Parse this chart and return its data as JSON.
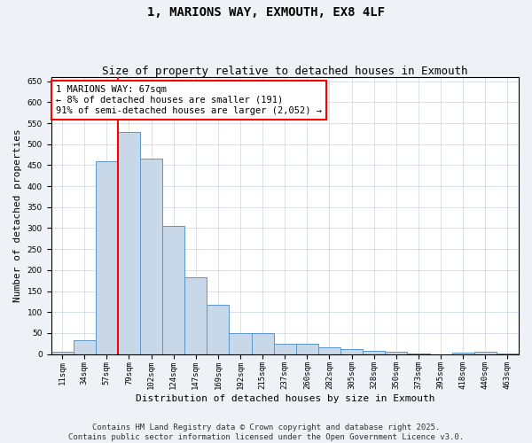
{
  "title": "1, MARIONS WAY, EXMOUTH, EX8 4LF",
  "subtitle": "Size of property relative to detached houses in Exmouth",
  "xlabel": "Distribution of detached houses by size in Exmouth",
  "ylabel": "Number of detached properties",
  "categories": [
    "11sqm",
    "34sqm",
    "57sqm",
    "79sqm",
    "102sqm",
    "124sqm",
    "147sqm",
    "169sqm",
    "192sqm",
    "215sqm",
    "237sqm",
    "260sqm",
    "282sqm",
    "305sqm",
    "328sqm",
    "350sqm",
    "373sqm",
    "395sqm",
    "418sqm",
    "440sqm",
    "463sqm"
  ],
  "values": [
    5,
    33,
    460,
    530,
    465,
    305,
    182,
    118,
    50,
    50,
    25,
    25,
    15,
    12,
    8,
    5,
    2,
    0,
    3,
    5,
    2
  ],
  "bar_color": "#c8d8e8",
  "bar_edge_color": "#5a96c8",
  "red_line_bin_index": 2,
  "annotation_text": "1 MARIONS WAY: 67sqm\n← 8% of detached houses are smaller (191)\n91% of semi-detached houses are larger (2,052) →",
  "annotation_box_color": "white",
  "annotation_box_edge_color": "red",
  "red_line_color": "red",
  "ylim": [
    0,
    660
  ],
  "yticks": [
    0,
    50,
    100,
    150,
    200,
    250,
    300,
    350,
    400,
    450,
    500,
    550,
    600,
    650
  ],
  "footer_line1": "Contains HM Land Registry data © Crown copyright and database right 2025.",
  "footer_line2": "Contains public sector information licensed under the Open Government Licence v3.0.",
  "bg_color": "#eef2f7",
  "plot_bg_color": "white",
  "title_fontsize": 10,
  "subtitle_fontsize": 9,
  "axis_label_fontsize": 8,
  "tick_fontsize": 6.5,
  "annotation_fontsize": 7.5,
  "footer_fontsize": 6.5
}
